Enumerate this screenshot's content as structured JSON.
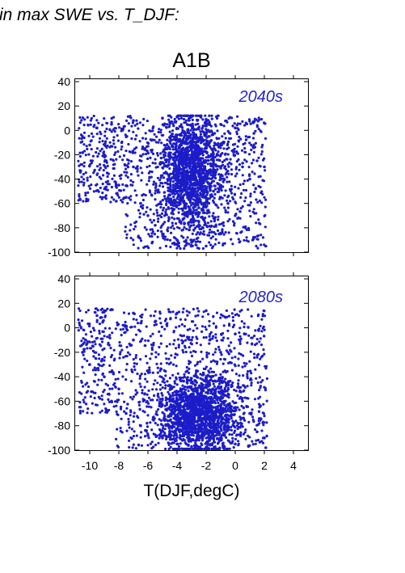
{
  "heading": "in max SWE vs. T_DJF:",
  "scenario_title": "A1B",
  "colors": {
    "points": "#1c1cc8",
    "label": "#2626c4",
    "axis": "#000000"
  },
  "chart_data": [
    {
      "type": "scatter",
      "title": "A1B",
      "panel_label": "2040s",
      "xlabel": "",
      "ylabel": "",
      "xlim": [
        -11,
        5
      ],
      "ylim": [
        -100,
        42
      ],
      "xticks": [
        -10,
        -8,
        -6,
        -4,
        -2,
        0,
        2,
        4
      ],
      "yticks": [
        -100,
        -80,
        -60,
        -40,
        -20,
        0,
        20,
        40
      ],
      "x_tick_labels_shown": false,
      "grid": false,
      "point_cloud": {
        "description_of_extent": "dense cloud",
        "x_range": [
          -10.8,
          2.1
        ],
        "y_range": [
          -97,
          12
        ],
        "densest_region": {
          "x": [
            -5,
            -1
          ],
          "y": [
            -80,
            10
          ]
        },
        "samples": [
          [
            -10.5,
            -5
          ],
          [
            -10,
            -12
          ],
          [
            -9.5,
            2
          ],
          [
            -9,
            -20
          ],
          [
            -8.8,
            -35
          ],
          [
            -8.5,
            5
          ],
          [
            -8,
            -45
          ],
          [
            -7.8,
            -10
          ],
          [
            -7.5,
            -55
          ],
          [
            -7,
            8
          ],
          [
            -7,
            -30
          ],
          [
            -6.5,
            -60
          ],
          [
            -6.2,
            -15
          ],
          [
            -6,
            -70
          ],
          [
            -5.5,
            -78
          ],
          [
            -5,
            -85
          ],
          [
            -5,
            10
          ],
          [
            -4.5,
            -40
          ],
          [
            -4,
            -90
          ],
          [
            -4,
            11
          ],
          [
            -3.5,
            -60
          ],
          [
            -3,
            -92
          ],
          [
            -3,
            -20
          ],
          [
            -2.5,
            -75
          ],
          [
            -2,
            -95
          ],
          [
            -2,
            9
          ],
          [
            -1.5,
            -50
          ],
          [
            -1,
            -85
          ],
          [
            -1,
            5
          ],
          [
            -0.5,
            -60
          ],
          [
            0,
            -70
          ],
          [
            0,
            2
          ],
          [
            0.5,
            -30
          ],
          [
            1,
            -40
          ],
          [
            1.2,
            -90
          ],
          [
            1.5,
            -25
          ],
          [
            2,
            -30
          ],
          [
            2.1,
            -95
          ]
        ]
      }
    },
    {
      "type": "scatter",
      "title": "",
      "panel_label": "2080s",
      "xlabel": "T(DJF,degC)",
      "ylabel": "",
      "xlim": [
        -11,
        5
      ],
      "ylim": [
        -100,
        42
      ],
      "xticks": [
        -10,
        -8,
        -6,
        -4,
        -2,
        0,
        2,
        4
      ],
      "xtick_labels": [
        "-10",
        "-8",
        "-6",
        "-4",
        "-2",
        "0",
        "2",
        "4"
      ],
      "yticks": [
        -100,
        -80,
        -60,
        -40,
        -20,
        0,
        20,
        40
      ],
      "grid": false,
      "point_cloud": {
        "description_of_extent": "dense cloud shifted toward -100",
        "x_range": [
          -10.8,
          2.2
        ],
        "y_range": [
          -99,
          16
        ],
        "densest_region": {
          "x": [
            -5,
            0
          ],
          "y": [
            -99,
            -40
          ]
        },
        "samples": [
          [
            -10.5,
            -20
          ],
          [
            -10,
            -30
          ],
          [
            -9.5,
            10
          ],
          [
            -9,
            -40
          ],
          [
            -8.5,
            -60
          ],
          [
            -8.5,
            15
          ],
          [
            -8,
            -50
          ],
          [
            -7.5,
            -70
          ],
          [
            -7,
            -10
          ],
          [
            -7,
            12
          ],
          [
            -6.5,
            -80
          ],
          [
            -6,
            -35
          ],
          [
            -6,
            -88
          ],
          [
            -5.5,
            5
          ],
          [
            -5,
            -90
          ],
          [
            -4.5,
            -60
          ],
          [
            -4,
            -95
          ],
          [
            -4,
            12
          ],
          [
            -3.5,
            -75
          ],
          [
            -3,
            -97
          ],
          [
            -3,
            -10
          ],
          [
            -2.5,
            -85
          ],
          [
            -2,
            -98
          ],
          [
            -2,
            14
          ],
          [
            -1.5,
            -65
          ],
          [
            -1,
            -92
          ],
          [
            -1,
            -20
          ],
          [
            -0.5,
            -80
          ],
          [
            0,
            -95
          ],
          [
            0,
            -5
          ],
          [
            0.5,
            -60
          ],
          [
            1,
            -70
          ],
          [
            1.5,
            -85
          ],
          [
            2,
            -90
          ],
          [
            2.1,
            -98
          ]
        ]
      }
    }
  ]
}
